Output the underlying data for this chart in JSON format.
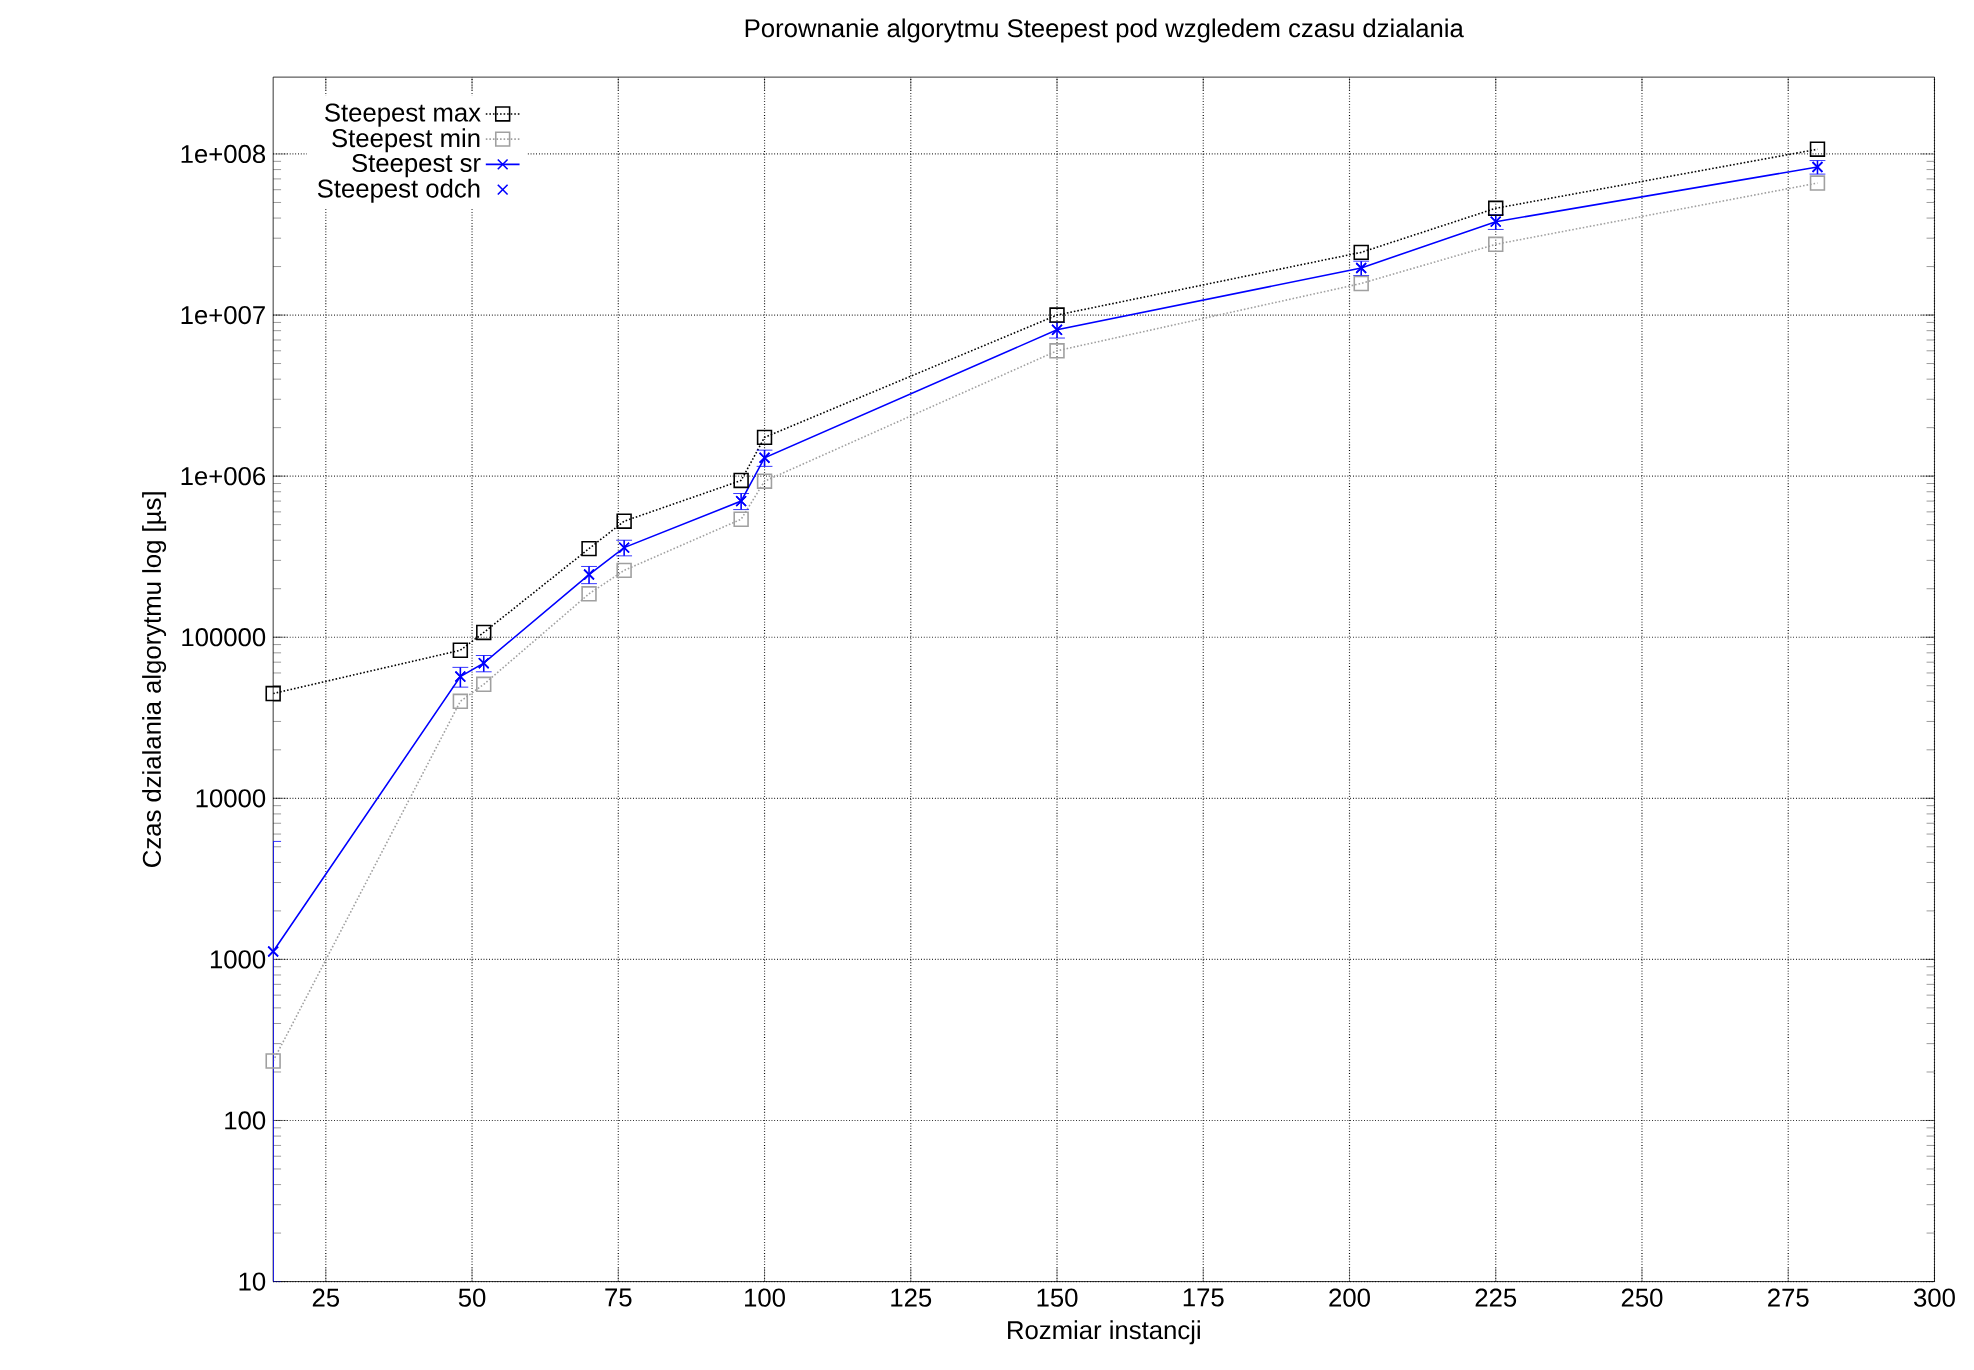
{
  "chart_data": {
    "type": "line",
    "title": "Porownanie algorytmu Steepest pod wzgledem czasu dzialania",
    "xlabel": "Rozmiar instancji",
    "ylabel": "Czas dzialania algorytmu log [µs]",
    "x": [
      16,
      48,
      52,
      70,
      76,
      96,
      100,
      150,
      202,
      225,
      280
    ],
    "series": [
      {
        "name": "Steepest max",
        "color": "#000000",
        "marker": "square",
        "line_style": "dotted",
        "values": [
          44700,
          83000,
          107000,
          355000,
          525000,
          940000,
          1740000,
          10000000,
          24500000,
          46000000,
          107000000
        ]
      },
      {
        "name": "Steepest min",
        "color": "#a0a0a0",
        "marker": "square",
        "line_style": "dotted",
        "values": [
          234,
          40000,
          51000,
          186000,
          260000,
          540000,
          930000,
          6000000,
          15700000,
          27500000,
          66000000
        ]
      },
      {
        "name": "Steepest sr",
        "color": "#0000ff",
        "marker": "cross",
        "line_style": "solid",
        "values": [
          1120,
          57000,
          69000,
          245000,
          360000,
          700000,
          1300000,
          8100000,
          19600000,
          38000000,
          83000000
        ]
      },
      {
        "name": "Steepest odch",
        "type": "scatter",
        "color": "#0000ff",
        "marker": "cross",
        "values": [
          1120,
          57000,
          69000,
          245000,
          360000,
          700000,
          1300000,
          8100000,
          19600000,
          38000000,
          83000000
        ],
        "errors": [
          [
            10,
            5400
          ],
          8000,
          8000,
          30000,
          40000,
          80000,
          150000,
          900000,
          2000000,
          4000000,
          8000000
        ]
      }
    ],
    "xlim": [
      16,
      300
    ],
    "xticks": [
      25,
      50,
      75,
      100,
      125,
      150,
      175,
      200,
      225,
      250,
      275,
      300
    ],
    "ylim": [
      10,
      300000000
    ],
    "log": "y",
    "yticks": [
      10,
      100,
      1000,
      10000,
      100000,
      {
        "value": 1000000,
        "label": "1e+006"
      },
      {
        "value": 10000000,
        "label": "1e+007"
      },
      {
        "value": 100000000,
        "label": "1e+008"
      }
    ],
    "grid": true,
    "legend": "top left"
  }
}
